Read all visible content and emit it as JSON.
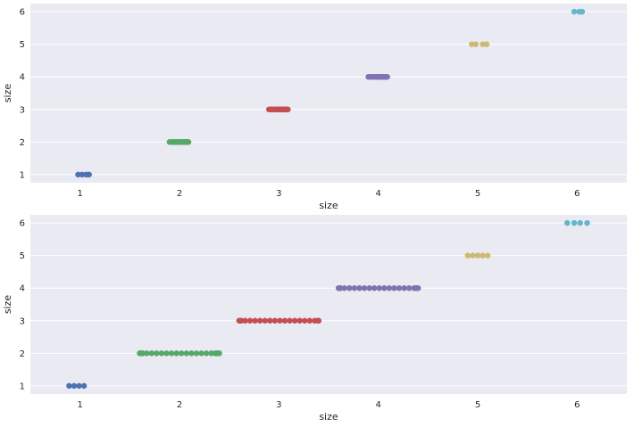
{
  "chart_data": [
    {
      "type": "scatter",
      "subtype": "stripplot",
      "title": "",
      "xlabel": "size",
      "ylabel": "size",
      "categories": [
        "1",
        "2",
        "3",
        "4",
        "5",
        "6"
      ],
      "yticks": [
        1,
        2,
        3,
        4,
        5,
        6
      ],
      "ylim": [
        0.75,
        6.25
      ],
      "grid": true,
      "jitter": 0.1,
      "series": [
        {
          "category": "1",
          "color": "#4c72b0",
          "y": 1,
          "x": [
            0.98,
            1.02,
            1.06,
            1.09
          ]
        },
        {
          "category": "2",
          "color": "#55a868",
          "y": 2,
          "x": [
            1.9,
            1.92,
            1.93,
            1.95,
            1.96,
            1.98,
            1.99,
            2.0,
            2.01,
            2.02,
            2.03,
            2.04,
            2.05,
            2.06,
            2.07,
            2.08,
            2.09
          ]
        },
        {
          "category": "3",
          "color": "#c44e52",
          "y": 3,
          "x": [
            2.9,
            2.92,
            2.93,
            2.95,
            2.96,
            2.98,
            2.99,
            3.0,
            3.01,
            3.02,
            3.03,
            3.04,
            3.05,
            3.06,
            3.07,
            3.08,
            3.09
          ]
        },
        {
          "category": "4",
          "color": "#8172b2",
          "y": 4,
          "x": [
            3.9,
            3.92,
            3.93,
            3.95,
            3.96,
            3.98,
            3.99,
            4.0,
            4.01,
            4.02,
            4.03,
            4.04,
            4.05,
            4.06,
            4.07,
            4.08,
            4.09
          ]
        },
        {
          "category": "5",
          "color": "#ccb974",
          "y": 5,
          "x": [
            4.94,
            4.98,
            5.05,
            5.09
          ]
        },
        {
          "category": "6",
          "color": "#64b5cd",
          "y": 6,
          "x": [
            5.97,
            6.02,
            6.05
          ]
        }
      ]
    },
    {
      "type": "scatter",
      "subtype": "stripplot",
      "title": "",
      "xlabel": "size",
      "ylabel": "size",
      "categories": [
        "1",
        "2",
        "3",
        "4",
        "5",
        "6"
      ],
      "yticks": [
        1,
        2,
        3,
        4,
        5,
        6
      ],
      "ylim": [
        0.75,
        6.25
      ],
      "grid": true,
      "jitter": 0.4,
      "series": [
        {
          "category": "1",
          "color": "#4c72b0",
          "y": 1,
          "x": [
            0.89,
            0.94,
            0.99,
            1.04
          ]
        },
        {
          "category": "2",
          "color": "#55a868",
          "y": 2,
          "x": [
            1.6,
            1.61,
            1.62,
            1.63,
            1.67,
            1.72,
            1.77,
            1.82,
            1.87,
            1.92,
            1.97,
            2.02,
            2.07,
            2.12,
            2.17,
            2.22,
            2.27,
            2.32,
            2.36,
            2.37,
            2.38,
            2.39,
            2.4
          ]
        },
        {
          "category": "3",
          "color": "#c44e52",
          "y": 3,
          "x": [
            2.6,
            2.61,
            2.62,
            2.66,
            2.71,
            2.76,
            2.81,
            2.86,
            2.91,
            2.96,
            3.01,
            3.06,
            3.11,
            3.16,
            3.21,
            3.26,
            3.31,
            3.36,
            3.39,
            3.4
          ]
        },
        {
          "category": "4",
          "color": "#8172b2",
          "y": 4,
          "x": [
            3.6,
            3.61,
            3.62,
            3.66,
            3.71,
            3.76,
            3.81,
            3.86,
            3.91,
            3.96,
            4.01,
            4.06,
            4.11,
            4.16,
            4.21,
            4.26,
            4.31,
            4.36,
            4.38,
            4.39,
            4.4
          ]
        },
        {
          "category": "5",
          "color": "#ccb974",
          "y": 5,
          "x": [
            4.9,
            4.95,
            5.0,
            5.05,
            5.1
          ]
        },
        {
          "category": "6",
          "color": "#64b5cd",
          "y": 6,
          "x": [
            5.9,
            5.97,
            6.03,
            6.1
          ]
        }
      ]
    }
  ]
}
